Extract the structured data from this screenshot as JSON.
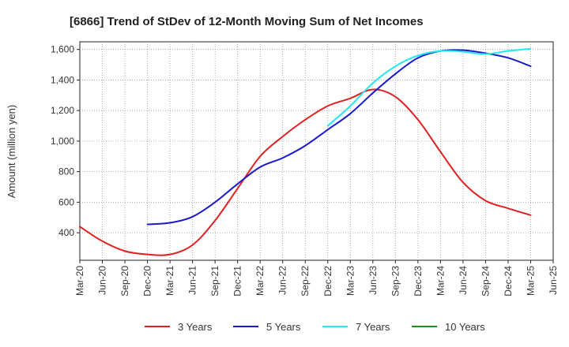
{
  "chart_data": {
    "type": "line",
    "title": "[6866]  Trend of StDev of 12-Month Moving Sum of Net Incomes",
    "ylabel": "Amount (million yen)",
    "xlabel": "",
    "ylim": [
      220,
      1650
    ],
    "yticks": [
      400,
      600,
      800,
      1000,
      1200,
      1400,
      1600
    ],
    "ytick_labels": [
      "400",
      "600",
      "800",
      "1,000",
      "1,200",
      "1,400",
      "1,600"
    ],
    "categories": [
      "Mar-20",
      "Jun-20",
      "Sep-20",
      "Dec-20",
      "Mar-21",
      "Jun-21",
      "Sep-21",
      "Dec-21",
      "Mar-22",
      "Jun-22",
      "Sep-22",
      "Dec-22",
      "Mar-23",
      "Jun-23",
      "Sep-23",
      "Dec-23",
      "Mar-24",
      "Jun-24",
      "Sep-24",
      "Dec-24",
      "Mar-25",
      "Jun-25"
    ],
    "grid": true,
    "legend_position": "bottom",
    "series": [
      {
        "name": "3 Years",
        "color": "#e02020",
        "values": [
          440,
          345,
          280,
          258,
          258,
          320,
          480,
          690,
          900,
          1030,
          1140,
          1230,
          1280,
          1338,
          1290,
          1140,
          930,
          730,
          610,
          560,
          515,
          null
        ]
      },
      {
        "name": "5 Years",
        "color": "#1a1acc",
        "values": [
          null,
          null,
          null,
          455,
          465,
          505,
          600,
          720,
          830,
          890,
          970,
          1075,
          1180,
          1315,
          1440,
          1545,
          1590,
          1595,
          1575,
          1545,
          1490,
          null
        ]
      },
      {
        "name": "7 Years",
        "color": "#22e8f0",
        "values": [
          null,
          null,
          null,
          null,
          null,
          null,
          null,
          null,
          null,
          null,
          null,
          1100,
          1230,
          1380,
          1490,
          1560,
          1590,
          1585,
          1570,
          1590,
          1605,
          null
        ]
      },
      {
        "name": "10 Years",
        "color": "#228b22",
        "values": [
          null,
          null,
          null,
          null,
          null,
          null,
          null,
          null,
          null,
          null,
          null,
          null,
          null,
          null,
          null,
          null,
          null,
          null,
          null,
          null,
          null,
          null
        ]
      }
    ]
  }
}
